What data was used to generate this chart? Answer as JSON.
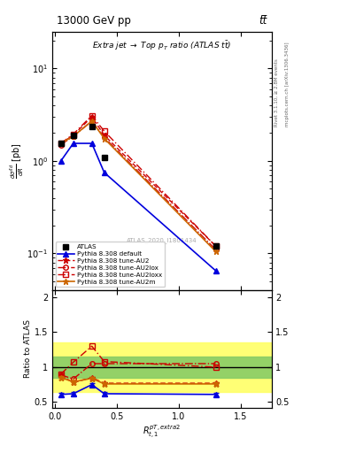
{
  "title_top": "13000 GeV pp",
  "title_right": "tt̅",
  "plot_title": "Extra jet → Top p_T ratio (ATLAS t̅t̅)",
  "xlabel": "$R_{t,1}^{pT,extra2}$",
  "ylabel_main": "$\\frac{d\\sigma^{fid}}{dR}$ [pb]",
  "ylabel_ratio": "Ratio to ATLAS",
  "watermark": "ATLAS_2020_I1801434",
  "right_label_top": "Rivet 3.1.10, ≥ 2.8M events",
  "right_label_bot": "mcplots.cern.ch [arXiv:1306.3436]",
  "x_pts": [
    0.05,
    0.15,
    0.3,
    0.4,
    1.3
  ],
  "y_atlas": [
    1.55,
    1.9,
    2.35,
    1.1,
    0.12
  ],
  "y_default": [
    1.0,
    1.55,
    1.55,
    0.75,
    0.065
  ],
  "y_au2": [
    1.55,
    1.9,
    3.0,
    1.9,
    0.12
  ],
  "y_au2lox": [
    1.5,
    1.85,
    2.7,
    1.8,
    0.11
  ],
  "y_au2loxx": [
    1.55,
    1.95,
    3.1,
    2.1,
    0.12
  ],
  "y_au2m": [
    1.55,
    1.85,
    2.7,
    1.75,
    0.105
  ],
  "ratio_default": [
    0.61,
    0.62,
    0.75,
    0.62,
    0.61
  ],
  "ratio_au2": [
    0.88,
    0.78,
    0.85,
    0.77,
    0.77
  ],
  "ratio_au2lox": [
    0.89,
    0.83,
    1.05,
    1.05,
    1.05
  ],
  "ratio_au2loxx": [
    0.9,
    1.07,
    1.3,
    1.08,
    1.0
  ],
  "ratio_au2m": [
    0.85,
    0.79,
    0.84,
    0.76,
    0.76
  ],
  "color_default": "#0000dd",
  "color_au2": "#cc0000",
  "color_au2m": "#cc6600",
  "band_green": [
    0.85,
    1.15
  ],
  "band_yellow": [
    0.65,
    1.35
  ],
  "xlim_main": [
    -0.02,
    1.75
  ],
  "ylim_main": [
    0.04,
    25
  ],
  "xlim_ratio": [
    -0.02,
    1.75
  ],
  "ylim_ratio": [
    0.42,
    2.1
  ],
  "xticks_main": [
    0.0,
    0.5,
    1.0,
    1.5
  ],
  "xticks_ratio": [
    0.0,
    0.5,
    1.0,
    1.5
  ],
  "yticks_ratio": [
    0.5,
    1.0,
    1.5,
    2.0
  ]
}
